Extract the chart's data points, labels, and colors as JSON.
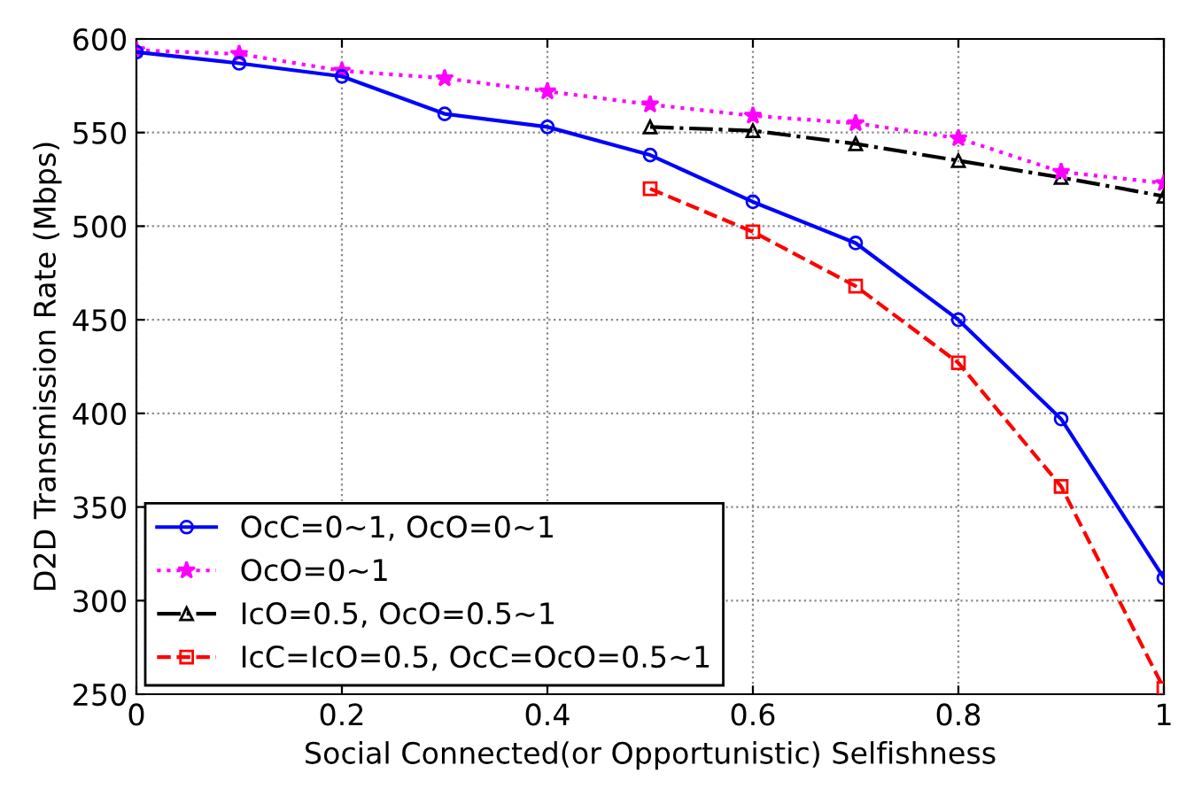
{
  "chart_data": {
    "type": "line",
    "xlabel": "Social Connected(or Opportunistic) Selfishness",
    "ylabel": "D2D Transmission Rate (Mbps)",
    "xlim": [
      0,
      1
    ],
    "xticks": [
      0,
      0.2,
      0.4,
      0.6,
      0.8,
      1
    ],
    "ylim": [
      250,
      600
    ],
    "yticks": [
      250,
      300,
      350,
      400,
      450,
      500,
      550,
      600
    ],
    "grid": true,
    "legend": "bottom left",
    "series": [
      {
        "name": "OcC=0~1, OcO=0~1",
        "color": "#0000ff",
        "marker": "circle",
        "line_style": "solid",
        "x": [
          0,
          0.1,
          0.2,
          0.3,
          0.4,
          0.5,
          0.6,
          0.7,
          0.8,
          0.9,
          1
        ],
        "values": [
          593,
          587,
          580,
          560,
          553,
          538,
          513,
          491,
          450,
          397,
          312
        ]
      },
      {
        "name": "OcO=0~1",
        "color": "#ff00ff",
        "marker": "star",
        "line_style": "dotted",
        "x": [
          0,
          0.1,
          0.2,
          0.3,
          0.4,
          0.5,
          0.6,
          0.7,
          0.8,
          0.9,
          1
        ],
        "values": [
          594,
          592,
          583,
          579,
          572,
          565,
          559,
          555,
          547,
          529,
          523
        ]
      },
      {
        "name": "IcO=0.5, OcO=0.5~1",
        "color": "#000000",
        "marker": "triangle",
        "line_style": "dashdot",
        "x": [
          0.5,
          0.6,
          0.7,
          0.8,
          0.9,
          1
        ],
        "values": [
          553,
          551,
          544,
          535,
          526,
          516
        ]
      },
      {
        "name": "IcC=IcO=0.5, OcC=OcO=0.5~1",
        "color": "#ff0000",
        "marker": "square",
        "line_style": "dashed",
        "x": [
          0.5,
          0.6,
          0.7,
          0.8,
          0.9,
          1
        ],
        "values": [
          520,
          497,
          468,
          427,
          361,
          253
        ]
      }
    ]
  }
}
